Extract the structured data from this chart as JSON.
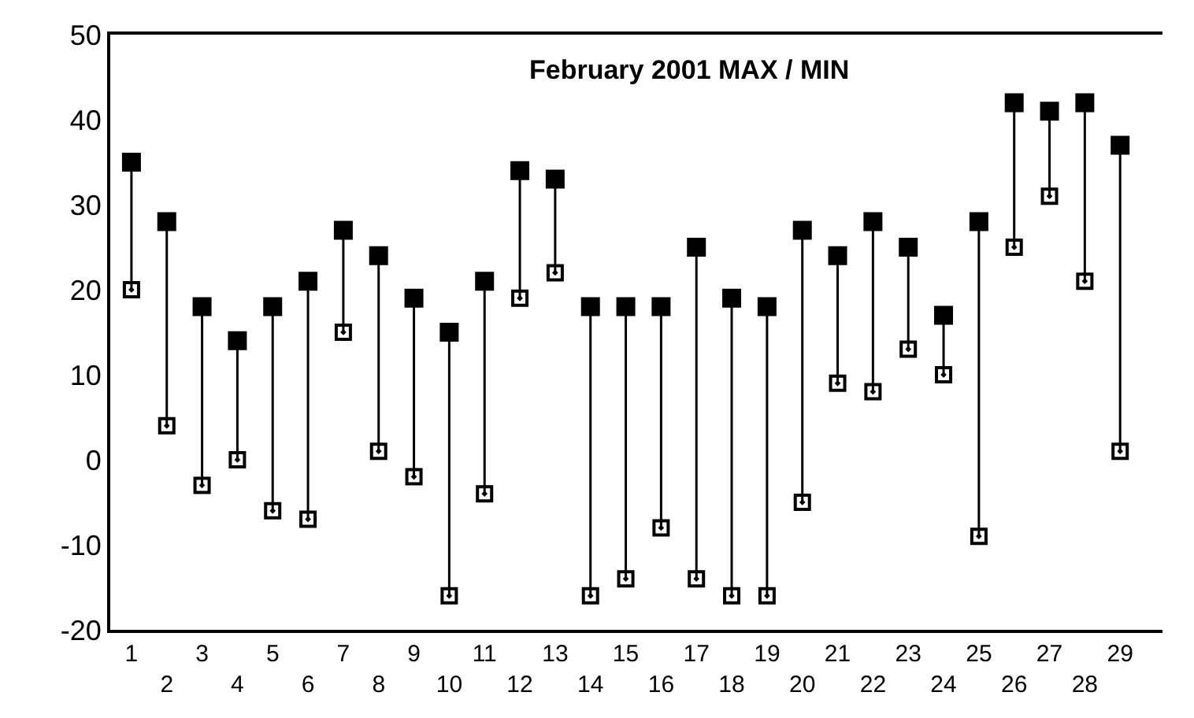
{
  "chart_data": {
    "type": "scatter",
    "title": "February 2001 MAX / MIN",
    "categories": [
      "1",
      "2",
      "3",
      "4",
      "5",
      "6",
      "7",
      "8",
      "9",
      "10",
      "11",
      "12",
      "13",
      "14",
      "15",
      "16",
      "17",
      "18",
      "19",
      "20",
      "21",
      "22",
      "23",
      "24",
      "25",
      "26",
      "27",
      "28",
      "29"
    ],
    "series": [
      {
        "color": "#000000",
        "values": [
          35,
          28,
          18,
          14,
          18,
          21,
          27,
          24,
          19,
          15,
          21,
          34,
          33,
          18,
          18,
          18,
          25,
          19,
          18,
          27,
          24,
          28,
          25,
          17,
          28,
          42,
          41,
          42,
          37
        ]
      },
      {
        "color": "#000000",
        "values": [
          20,
          4,
          -3,
          0,
          -6,
          -7,
          15,
          1,
          -2,
          -16,
          -4,
          19,
          22,
          -16,
          -14,
          -8,
          -14,
          -16,
          -16,
          -5,
          9,
          8,
          13,
          10,
          -9,
          25,
          31,
          21,
          1
        ]
      }
    ],
    "ylim": [
      -20,
      50
    ],
    "yticks": [
      -20,
      -10,
      0,
      10,
      20,
      30,
      40,
      50
    ],
    "marker": "square"
  }
}
